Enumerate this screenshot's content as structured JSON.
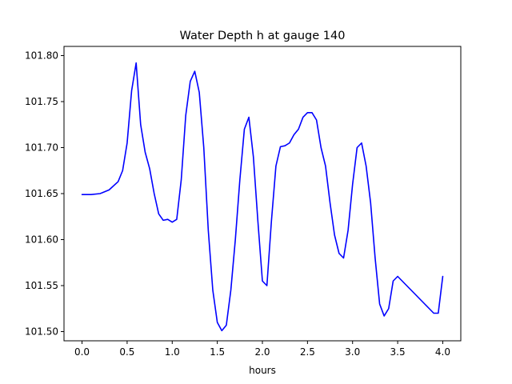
{
  "chart_data": {
    "type": "line",
    "title": "Water Depth h at gauge 140",
    "xlabel": "hours",
    "ylabel": "",
    "xlim": [
      -0.2,
      4.2
    ],
    "ylim": [
      101.49,
      101.81
    ],
    "xticks": [
      0.0,
      0.5,
      1.0,
      1.5,
      2.0,
      2.5,
      3.0,
      3.5,
      4.0
    ],
    "xtick_labels": [
      "0.0",
      "0.5",
      "1.0",
      "1.5",
      "2.0",
      "2.5",
      "3.0",
      "3.5",
      "4.0"
    ],
    "yticks": [
      101.5,
      101.55,
      101.6,
      101.65,
      101.7,
      101.75,
      101.8
    ],
    "ytick_labels": [
      "101.50",
      "101.55",
      "101.60",
      "101.65",
      "101.70",
      "101.75",
      "101.80"
    ],
    "grid": false,
    "legend": "none",
    "series": [
      {
        "color": "#0000ff",
        "x": [
          0.0,
          0.1,
          0.2,
          0.3,
          0.4,
          0.45,
          0.5,
          0.55,
          0.6,
          0.65,
          0.7,
          0.75,
          0.8,
          0.85,
          0.9,
          0.95,
          1.0,
          1.05,
          1.1,
          1.15,
          1.2,
          1.25,
          1.3,
          1.35,
          1.4,
          1.45,
          1.5,
          1.55,
          1.6,
          1.65,
          1.7,
          1.75,
          1.8,
          1.85,
          1.9,
          1.95,
          2.0,
          2.05,
          2.1,
          2.15,
          2.2,
          2.25,
          2.3,
          2.35,
          2.4,
          2.45,
          2.5,
          2.55,
          2.6,
          2.65,
          2.7,
          2.75,
          2.8,
          2.85,
          2.9,
          2.95,
          3.0,
          3.05,
          3.1,
          3.15,
          3.2,
          3.25,
          3.3,
          3.35,
          3.4,
          3.45,
          3.5,
          3.55,
          3.6,
          3.65,
          3.7,
          3.75,
          3.8,
          3.85,
          3.9,
          3.95,
          4.0
        ],
        "y": [
          101.649,
          101.649,
          101.65,
          101.654,
          101.663,
          101.675,
          101.705,
          101.762,
          101.792,
          101.725,
          101.695,
          101.677,
          101.65,
          101.628,
          101.621,
          101.622,
          101.619,
          101.622,
          101.665,
          101.735,
          101.772,
          101.783,
          101.76,
          101.7,
          101.61,
          101.545,
          101.51,
          101.501,
          101.507,
          101.545,
          101.6,
          101.665,
          101.72,
          101.733,
          101.69,
          101.62,
          101.555,
          101.55,
          101.62,
          101.68,
          101.701,
          101.702,
          101.705,
          101.714,
          101.72,
          101.733,
          101.738,
          101.738,
          101.73,
          101.7,
          101.68,
          101.64,
          101.605,
          101.585,
          101.58,
          101.61,
          101.66,
          101.7,
          101.705,
          101.68,
          101.64,
          101.58,
          101.53,
          101.517,
          101.525,
          101.555,
          101.56,
          101.555,
          101.55,
          101.545,
          101.54,
          101.535,
          101.53,
          101.525,
          101.52,
          101.52,
          101.56
        ]
      }
    ]
  }
}
